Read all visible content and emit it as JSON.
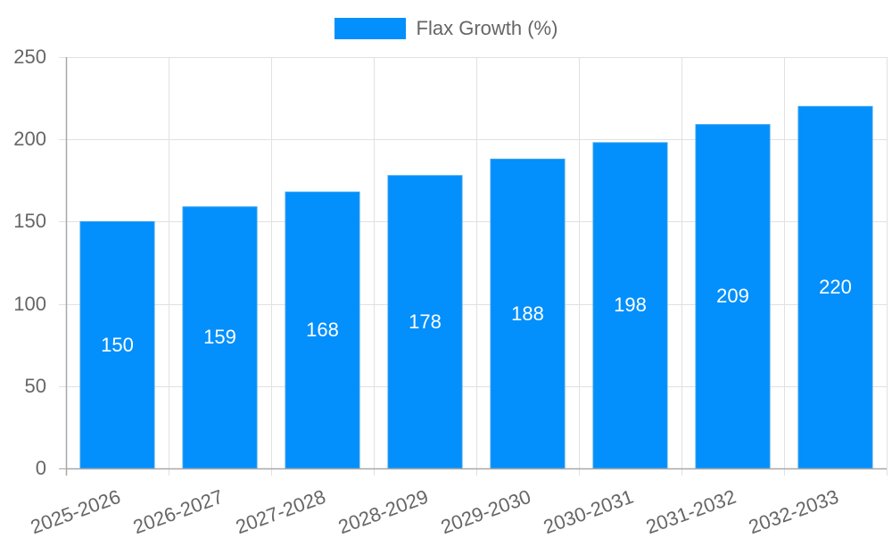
{
  "legend": {
    "label": "Flax Growth (%)",
    "color": "#038ffc"
  },
  "axes": {
    "y_ticks": [
      "0",
      "50",
      "100",
      "150",
      "200",
      "250"
    ],
    "x_ticks": [
      "2025-2026",
      "2026-2027",
      "2027-2028",
      "2028-2029",
      "2029-2030",
      "2030-2031",
      "2031-2032",
      "2032-2033"
    ]
  },
  "chart_data": {
    "type": "bar",
    "title": "",
    "categories": [
      "2025-2026",
      "2026-2027",
      "2027-2028",
      "2028-2029",
      "2029-2030",
      "2030-2031",
      "2031-2032",
      "2032-2033"
    ],
    "series": [
      {
        "name": "Flax Growth (%)",
        "values": [
          150,
          159,
          168,
          178,
          188,
          198,
          209,
          220
        ],
        "color": "#038ffc"
      }
    ],
    "values": [
      150,
      159,
      168,
      178,
      188,
      198,
      209,
      220
    ],
    "data_labels": [
      "150",
      "159",
      "168",
      "178",
      "188",
      "198",
      "209",
      "220"
    ],
    "xlabel": "",
    "ylabel": "",
    "ylim": [
      0,
      250
    ],
    "y_tick_step": 50,
    "grid": true,
    "legend_position": "top"
  }
}
